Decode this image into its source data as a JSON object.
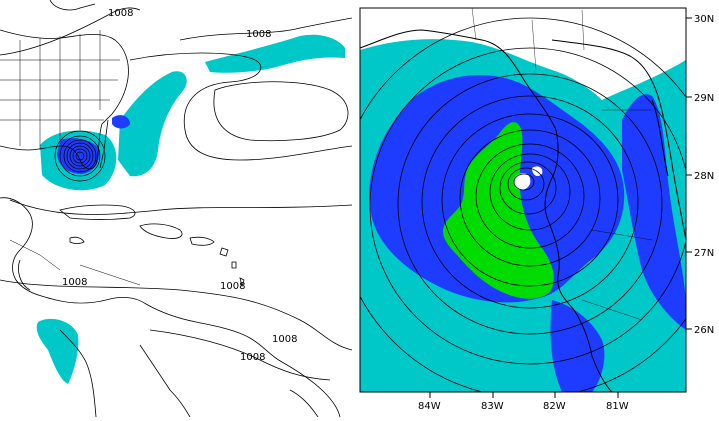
{
  "left_map": {
    "isobar_labels": [
      "1008",
      "1008",
      "1008",
      "1008",
      "1008",
      "1008"
    ]
  },
  "right_map": {
    "lat_labels": [
      "30N",
      "29N",
      "28N",
      "27N",
      "26N"
    ],
    "lon_labels": [
      "84W",
      "83W",
      "82W",
      "81W"
    ]
  },
  "colors": {
    "light_precip": "#00c8c8",
    "moderate_precip": "#1e3cff",
    "heavy_precip": "#00dc00",
    "coastline": "#000000",
    "background": "#ffffff"
  }
}
